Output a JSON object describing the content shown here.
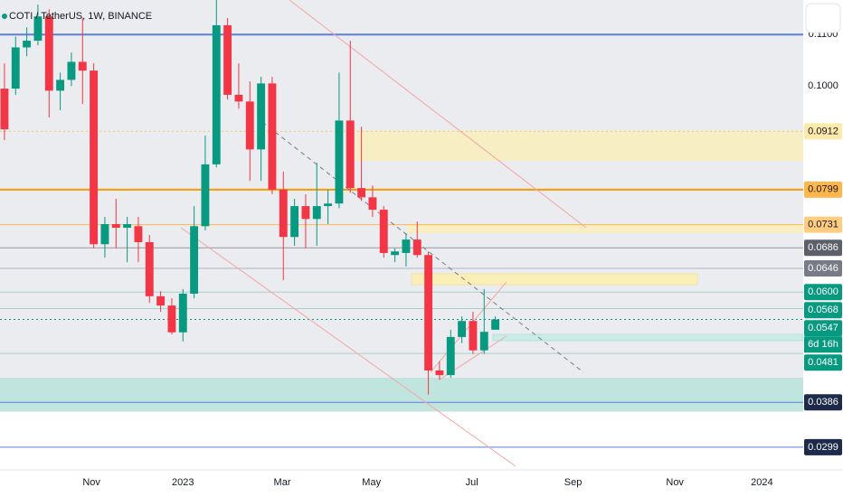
{
  "chart_data": {
    "type": "candlestick",
    "title": "COTI / TetherUS, 1W, BINANCE",
    "up_color": "#089981",
    "down_color": "#f23645",
    "open": [
      0.0995,
      0.0995,
      0.1075,
      0.1088,
      0.1135,
      0.0991,
      0.1012,
      0.1047,
      0.103,
      0.0693,
      0.0732,
      0.0725,
      0.0728,
      0.0697,
      0.0592,
      0.0574,
      0.0522,
      0.0597,
      0.0728,
      0.0848,
      0.1118,
      0.0983,
      0.097,
      0.0877,
      0.1005,
      0.0799,
      0.0707,
      0.0767,
      0.0742,
      0.0767,
      0.0772,
      0.0933,
      0.0802,
      0.0784,
      0.076,
      0.0672,
      0.0676,
      0.0702,
      0.0672,
      0.0448,
      0.0439,
      0.0513,
      0.0544,
      0.0487,
      0.0527
    ],
    "high": [
      0.1044,
      0.1096,
      0.1114,
      0.1158,
      0.1149,
      0.1026,
      0.1065,
      0.1132,
      0.1044,
      0.0746,
      0.0781,
      0.0746,
      0.0746,
      0.0711,
      0.0602,
      0.0588,
      0.0606,
      0.0767,
      0.0904,
      0.1167,
      0.1132,
      0.1044,
      0.1009,
      0.1018,
      0.1018,
      0.0834,
      0.0781,
      0.079,
      0.0851,
      0.0799,
      0.1026,
      0.1088,
      0.0921,
      0.0807,
      0.0767,
      0.0685,
      0.0714,
      0.0737,
      0.0679,
      0.0466,
      0.0527,
      0.0553,
      0.0562,
      0.0606,
      0.0553
    ],
    "low": [
      0.0895,
      0.0983,
      0.1058,
      0.1079,
      0.0939,
      0.0953,
      0.1,
      0.0965,
      0.0685,
      0.0667,
      0.0685,
      0.0658,
      0.0658,
      0.0579,
      0.0562,
      0.0518,
      0.0504,
      0.0588,
      0.072,
      0.0842,
      0.0974,
      0.0956,
      0.0816,
      0.0816,
      0.079,
      0.0623,
      0.069,
      0.0685,
      0.069,
      0.0732,
      0.0763,
      0.0793,
      0.0777,
      0.0746,
      0.0667,
      0.0658,
      0.065,
      0.0667,
      0.0401,
      0.043,
      0.0434,
      0.0501,
      0.048,
      0.048,
      0.0527
    ],
    "close": [
      0.0916,
      0.1075,
      0.1088,
      0.1135,
      0.0991,
      0.1012,
      0.1047,
      0.103,
      0.0693,
      0.0732,
      0.0725,
      0.0732,
      0.0697,
      0.0592,
      0.0574,
      0.0522,
      0.0597,
      0.0728,
      0.0848,
      0.1118,
      0.0983,
      0.097,
      0.0877,
      0.1005,
      0.0799,
      0.0707,
      0.0767,
      0.0742,
      0.0767,
      0.0772,
      0.0933,
      0.0802,
      0.0784,
      0.076,
      0.0676,
      0.0679,
      0.0702,
      0.0672,
      0.0448,
      0.0439,
      0.0513,
      0.0544,
      0.0487,
      0.0523,
      0.0547
    ],
    "xlim": [
      -0.4,
      71.6
    ],
    "xticks": [
      {
        "value": 7.8,
        "label": "Nov"
      },
      {
        "value": 16.0,
        "label": "2023"
      },
      {
        "value": 24.9,
        "label": "Mar"
      },
      {
        "value": 32.9,
        "label": "May"
      },
      {
        "value": 41.9,
        "label": "Jul"
      },
      {
        "value": 50.97,
        "label": "Sep"
      },
      {
        "value": 60.1,
        "label": "Nov"
      },
      {
        "value": 67.9,
        "label": "2024"
      }
    ],
    "ylim": [
      0.0255,
      0.1167
    ],
    "yticks": [
      {
        "value": 0.1,
        "label": "0.1000"
      }
    ],
    "grid": false,
    "levels": [
      {
        "price": {
          "value": 0.11,
          "label": "0.1100"
        },
        "line_color": "#5b7fde",
        "line_width": 2
      },
      {
        "price": 0.0912,
        "line_color": "#f2c86b",
        "dash": true,
        "box_color": "#fde9a9",
        "text_color": "#131722"
      },
      {
        "price": 0.0799,
        "line_color": "#ff9800",
        "line_width": 2,
        "box_color": "#ffb74d",
        "text_color": "#131722"
      },
      {
        "price": 0.0731,
        "line_color": "#ffb74d",
        "box_color": "#ffcc80",
        "text_color": "#131722"
      },
      {
        "price": 0.0686,
        "line_color": "#9598a1",
        "box_color": "#5d606b",
        "text_color": "#ffffff"
      },
      {
        "price": 0.0646,
        "line_color": "#b2b5be",
        "box_color": "#787b86",
        "text_color": "#ffffff"
      },
      {
        "price": {
          "value": 0.06,
          "label": "0.0600"
        },
        "line_color": "#a8cfc9",
        "box_color": "#089981",
        "text_color": "#ffffff"
      },
      {
        "price": 0.0568,
        "line_color": "#a8cfc9",
        "box_color": "#089981",
        "text_color": "#ffffff"
      },
      {
        "price": 0.0547,
        "line_color": "#089981",
        "dash": true,
        "box_color": "#089981",
        "text_color": "#ffffff"
      },
      {
        "price": 0.0481,
        "line_color": "#a8cfc9",
        "box_color": "#089981",
        "text_color": "#ffffff"
      },
      {
        "price": 0.0386,
        "line_color": "#5b7fde",
        "box_color": "#1e2a4a",
        "text_color": "#ffffff"
      },
      {
        "price": 0.0299,
        "line_color": "#5b7fde",
        "box_color": "#1e2a4a",
        "text_color": "#ffffff"
      }
    ],
    "timer": "6d 16h"
  }
}
